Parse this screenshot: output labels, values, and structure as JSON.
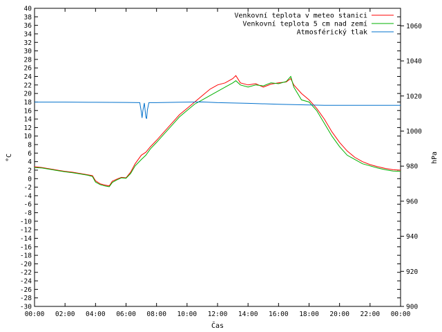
{
  "chart_data": {
    "type": "line",
    "xlabel": "Čas",
    "ylabel_left": "°C",
    "ylabel_right": "hPa",
    "x_range_hours": [
      0,
      24
    ],
    "y_left_range": [
      -30,
      40
    ],
    "y_right_range": [
      900,
      1070
    ],
    "x_tick_labels": [
      "00:00",
      "02:00",
      "04:00",
      "06:00",
      "08:00",
      "10:00",
      "12:00",
      "14:00",
      "16:00",
      "18:00",
      "20:00",
      "22:00",
      "00:00"
    ],
    "y_left_ticks": [
      -30,
      -28,
      -26,
      -24,
      -22,
      -20,
      -18,
      -16,
      -14,
      -12,
      -10,
      -8,
      -6,
      -4,
      -2,
      0,
      2,
      4,
      6,
      8,
      10,
      12,
      14,
      16,
      18,
      20,
      22,
      24,
      26,
      28,
      30,
      32,
      34,
      36,
      38,
      40
    ],
    "y_right_ticks": [
      900,
      920,
      940,
      960,
      980,
      1000,
      1020,
      1040,
      1060
    ],
    "grid": false,
    "legend_position": "top-right",
    "series": [
      {
        "name": "Venkovní teplota v meteo stanici",
        "color": "#ff0000",
        "axis": "left",
        "x": [
          0,
          0.5,
          1,
          1.5,
          2,
          2.5,
          3,
          3.5,
          3.8,
          4,
          4.3,
          4.6,
          4.9,
          5.1,
          5.4,
          5.7,
          6,
          6.3,
          6.6,
          7,
          7.3,
          7.6,
          8,
          8.5,
          9,
          9.5,
          10,
          10.5,
          11,
          11.5,
          12,
          12.5,
          13,
          13.2,
          13.5,
          14,
          14.5,
          15,
          15.5,
          16,
          16.5,
          16.8,
          17,
          17.5,
          18,
          18.5,
          19,
          19.5,
          20,
          20.5,
          21,
          21.5,
          22,
          22.5,
          23,
          23.5,
          24
        ],
        "y": [
          2.8,
          2.6,
          2.3,
          2.0,
          1.7,
          1.5,
          1.2,
          0.9,
          0.7,
          -0.5,
          -1.2,
          -1.5,
          -1.7,
          -0.6,
          -0.1,
          0.3,
          0.2,
          1.5,
          3.5,
          5.5,
          6.2,
          7.5,
          9.0,
          11.0,
          13.0,
          15.0,
          16.5,
          18.0,
          19.5,
          21.0,
          22.0,
          22.5,
          23.5,
          24.2,
          22.5,
          22.0,
          22.3,
          21.5,
          22.2,
          22.5,
          22.7,
          23.5,
          22.0,
          20.0,
          18.5,
          16.5,
          14.0,
          11.0,
          8.5,
          6.5,
          5.0,
          4.0,
          3.3,
          2.8,
          2.4,
          2.1,
          2.0
        ]
      },
      {
        "name": "Venkovní teplota 5 cm nad zemí",
        "color": "#00b000",
        "axis": "left",
        "x": [
          0,
          0.5,
          1,
          1.5,
          2,
          2.5,
          3,
          3.5,
          3.8,
          4,
          4.3,
          4.6,
          4.9,
          5.1,
          5.4,
          5.7,
          6,
          6.3,
          6.6,
          7,
          7.3,
          7.6,
          8,
          8.5,
          9,
          9.5,
          10,
          10.5,
          11,
          11.5,
          12,
          12.5,
          13,
          13.2,
          13.5,
          14,
          14.5,
          15,
          15.5,
          16,
          16.5,
          16.8,
          17,
          17.5,
          18,
          18.5,
          19,
          19.5,
          20,
          20.5,
          21,
          21.5,
          22,
          22.5,
          23,
          23.5,
          24
        ],
        "y": [
          2.6,
          2.5,
          2.2,
          1.9,
          1.6,
          1.4,
          1.1,
          0.8,
          0.5,
          -0.8,
          -1.4,
          -1.7,
          -1.9,
          -0.9,
          -0.3,
          0.2,
          0.1,
          1.2,
          3.0,
          4.5,
          5.5,
          7.0,
          8.5,
          10.5,
          12.5,
          14.5,
          16.0,
          17.5,
          18.5,
          19.5,
          20.5,
          21.5,
          22.5,
          23.0,
          22.0,
          21.5,
          22.0,
          21.8,
          22.5,
          22.3,
          22.8,
          24.0,
          21.5,
          18.5,
          18.0,
          16.0,
          13.0,
          10.0,
          7.5,
          5.5,
          4.5,
          3.5,
          3.0,
          2.5,
          2.1,
          1.8,
          1.7
        ]
      },
      {
        "name": "Atmosférický tlak",
        "color": "#0070cc",
        "axis": "right",
        "x": [
          0,
          2,
          4,
          6,
          6.9,
          7.0,
          7.05,
          7.1,
          7.2,
          7.3,
          7.35,
          7.4,
          7.5,
          8,
          10,
          11,
          12,
          14,
          16,
          18,
          19,
          20,
          22,
          24
        ],
        "y": [
          1016.5,
          1016.5,
          1016.4,
          1016.3,
          1016.2,
          1011.0,
          1007.5,
          1011.5,
          1016.0,
          1008.0,
          1007.0,
          1012.0,
          1016.2,
          1016.2,
          1016.5,
          1016.6,
          1016.2,
          1015.8,
          1015.3,
          1014.9,
          1014.7,
          1014.7,
          1014.7,
          1014.7
        ]
      }
    ]
  }
}
